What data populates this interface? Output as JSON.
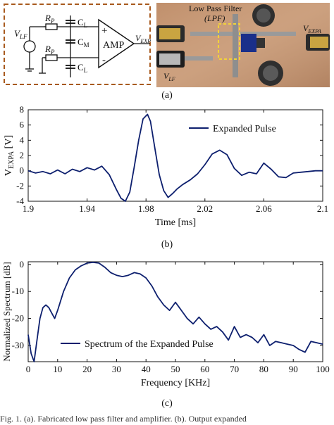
{
  "figure_a": {
    "labels": {
      "vlf": "V",
      "vlf_sub": "LF",
      "rp": "R",
      "rp_sub": "P",
      "cl": "C",
      "cl_sub": "L",
      "cm": "C",
      "cm_sub": "M",
      "plus": "+",
      "minus": "-",
      "amp": "AMP",
      "vexp": "V",
      "vexp_sub": "EXP"
    },
    "photo_labels": {
      "lpf_line1": "Low Pass Filter",
      "lpf_line2": "(LPF)",
      "vexpa": "V",
      "vexpa_sub": "EXPA",
      "vlf": "V",
      "vlf_sub": "LF"
    },
    "caption": "(a)"
  },
  "chart_b_caption": "(b)",
  "chart_c_caption": "(c)",
  "footer_text": "Fig. 1.   (a). Fabricated low pass filter and amplifier. (b). Output expanded",
  "chart_data": [
    {
      "type": "line",
      "title": "",
      "xlabel": "Time [ms]",
      "ylabel": "V",
      "ylabel_sub": "EXPA",
      "ylabel_unit": " [V]",
      "xlim": [
        1.9,
        2.1
      ],
      "ylim": [
        -4,
        8
      ],
      "xticks": [
        "1.9",
        "1.94",
        "1.98",
        "2.02",
        "2.06",
        "2.1"
      ],
      "xtick_values": [
        1.9,
        1.94,
        1.98,
        2.02,
        2.06,
        2.1
      ],
      "yticks": [
        "8",
        "6",
        "4",
        "2",
        "0",
        "-2",
        "-4"
      ],
      "ytick_values": [
        8,
        6,
        4,
        2,
        0,
        -2,
        -4
      ],
      "legend_position": "top-right",
      "series_color": "#0d1f6e",
      "series": [
        {
          "name": "Expanded Pulse",
          "x": [
            1.9,
            1.905,
            1.91,
            1.915,
            1.92,
            1.925,
            1.93,
            1.935,
            1.94,
            1.945,
            1.95,
            1.955,
            1.96,
            1.963,
            1.966,
            1.969,
            1.972,
            1.975,
            1.978,
            1.981,
            1.983,
            1.986,
            1.989,
            1.992,
            1.995,
            1.998,
            2.001,
            2.005,
            2.01,
            2.015,
            2.02,
            2.025,
            2.03,
            2.035,
            2.04,
            2.045,
            2.05,
            2.055,
            2.06,
            2.065,
            2.07,
            2.075,
            2.08,
            2.085,
            2.09,
            2.095,
            2.1
          ],
          "y": [
            0,
            -0.3,
            -0.1,
            -0.4,
            0.1,
            -0.4,
            0.2,
            -0.1,
            0.4,
            0.1,
            0.6,
            -0.5,
            -2.5,
            -3.6,
            -4.0,
            -2.8,
            0.5,
            4.0,
            6.8,
            7.4,
            6.5,
            3.0,
            -0.5,
            -2.6,
            -3.5,
            -3.0,
            -2.4,
            -1.8,
            -1.2,
            -0.4,
            0.8,
            2.2,
            2.7,
            2.1,
            0.3,
            -0.6,
            -0.2,
            -0.4,
            1.0,
            0.2,
            -0.8,
            -0.9,
            -0.3,
            -0.2,
            -0.1,
            0.0,
            0.0
          ]
        }
      ]
    },
    {
      "type": "line",
      "title": "",
      "xlabel": "Frequency [KHz]",
      "ylabel": "Normalized Spectrum [dB]",
      "xlim": [
        0,
        100
      ],
      "ylim": [
        -36,
        1
      ],
      "xticks": [
        "0",
        "10",
        "20",
        "30",
        "40",
        "50",
        "60",
        "70",
        "80",
        "90",
        "100"
      ],
      "xtick_values": [
        0,
        10,
        20,
        30,
        40,
        50,
        60,
        70,
        80,
        90,
        100
      ],
      "yticks": [
        "0",
        "-10",
        "-20",
        "-30"
      ],
      "ytick_values": [
        0,
        -10,
        -20,
        -30
      ],
      "legend_position": "bottom-right",
      "series_color": "#0d1f6e",
      "series": [
        {
          "name": "Spectrum of the Expanded Pulse",
          "x": [
            0,
            1,
            2,
            3,
            4,
            5,
            6,
            7,
            8,
            9,
            10,
            12,
            14,
            16,
            18,
            20,
            22,
            24,
            26,
            28,
            30,
            32,
            34,
            36,
            38,
            40,
            42,
            44,
            46,
            48,
            50,
            52,
            54,
            56,
            58,
            60,
            62,
            64,
            66,
            68,
            70,
            72,
            74,
            76,
            78,
            80,
            82,
            84,
            86,
            88,
            90,
            92,
            94,
            96,
            98,
            100
          ],
          "y": [
            -26,
            -33,
            -36,
            -28,
            -20,
            -16,
            -15,
            -16,
            -18,
            -20,
            -17,
            -10,
            -5,
            -2,
            -0.5,
            0.5,
            0.8,
            0.5,
            -1,
            -3,
            -4,
            -4.5,
            -4,
            -3,
            -3.5,
            -5,
            -8,
            -12,
            -15,
            -17,
            -14,
            -17,
            -20,
            -22,
            -19.5,
            -22,
            -24,
            -23,
            -25,
            -28,
            -23,
            -27,
            -26,
            -27,
            -29,
            -26,
            -30,
            -28.5,
            -29,
            -29.5,
            -30,
            -31.5,
            -32.5,
            -28.5,
            -29,
            -29.5
          ]
        }
      ]
    }
  ]
}
